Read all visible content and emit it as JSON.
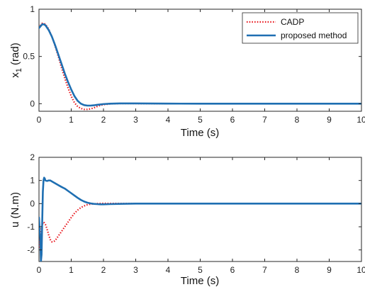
{
  "chart_data": [
    {
      "type": "line",
      "xlabel": "Time (s)",
      "ylabel_main": "x",
      "ylabel_sub": "1",
      "ylabel_unit": " (rad)",
      "xlim": [
        0,
        10
      ],
      "ylim": [
        -0.08,
        1
      ],
      "xticks": [
        "0",
        "1",
        "2",
        "3",
        "4",
        "5",
        "6",
        "7",
        "8",
        "9",
        "10"
      ],
      "yticks": [
        {
          "v": 0,
          "label": "0"
        },
        {
          "v": 0.5,
          "label": "0.5"
        },
        {
          "v": 1,
          "label": "1"
        }
      ],
      "legend": "top-right",
      "series": [
        {
          "name": "CADP",
          "color": "#e8141b",
          "dash": "dotted",
          "x": [
            0,
            0.05,
            0.1,
            0.15,
            0.2,
            0.3,
            0.4,
            0.5,
            0.6,
            0.7,
            0.8,
            0.9,
            1.0,
            1.1,
            1.2,
            1.3,
            1.4,
            1.5,
            1.6,
            1.7,
            1.8,
            1.9,
            2.0,
            2.2,
            2.5,
            3,
            4,
            5,
            10
          ],
          "y": [
            0.8,
            0.83,
            0.85,
            0.85,
            0.84,
            0.79,
            0.71,
            0.61,
            0.5,
            0.38,
            0.27,
            0.17,
            0.08,
            0.01,
            -0.03,
            -0.05,
            -0.06,
            -0.06,
            -0.055,
            -0.045,
            -0.03,
            -0.018,
            -0.01,
            -0.002,
            0.002,
            0.002,
            0,
            0,
            0
          ]
        },
        {
          "name": "proposed method",
          "color": "#1f6fb2",
          "dash": "solid",
          "x": [
            0,
            0.05,
            0.1,
            0.15,
            0.2,
            0.3,
            0.4,
            0.5,
            0.6,
            0.7,
            0.8,
            0.9,
            1.0,
            1.1,
            1.2,
            1.3,
            1.4,
            1.5,
            1.6,
            1.7,
            1.8,
            1.9,
            2.0,
            2.2,
            2.5,
            3,
            4,
            5,
            10
          ],
          "y": [
            0.8,
            0.82,
            0.84,
            0.84,
            0.83,
            0.78,
            0.71,
            0.62,
            0.52,
            0.42,
            0.32,
            0.23,
            0.15,
            0.08,
            0.03,
            0.0,
            -0.015,
            -0.02,
            -0.02,
            -0.017,
            -0.012,
            -0.008,
            -0.004,
            0.0,
            0.003,
            0.003,
            0.001,
            0,
            0
          ]
        }
      ]
    },
    {
      "type": "line",
      "xlabel": "Time (s)",
      "ylabel": "u (N.m)",
      "xlim": [
        0,
        10
      ],
      "ylim": [
        -2.5,
        2
      ],
      "xticks": [
        "0",
        "1",
        "2",
        "3",
        "4",
        "5",
        "6",
        "7",
        "8",
        "9",
        "10"
      ],
      "yticks": [
        {
          "v": -2,
          "label": "-2"
        },
        {
          "v": -1,
          "label": "-1"
        },
        {
          "v": 0,
          "label": "0"
        },
        {
          "v": 1,
          "label": "1"
        },
        {
          "v": 2,
          "label": "2"
        }
      ],
      "series": [
        {
          "name": "CADP",
          "color": "#e8141b",
          "dash": "dotted",
          "x": [
            0,
            0.05,
            0.1,
            0.15,
            0.2,
            0.25,
            0.3,
            0.35,
            0.4,
            0.45,
            0.5,
            0.55,
            0.6,
            0.7,
            0.8,
            0.9,
            1.0,
            1.1,
            1.2,
            1.3,
            1.4,
            1.5,
            1.6,
            1.8,
            2.0,
            3,
            10
          ],
          "y": [
            -1.9,
            -1.3,
            -0.9,
            -0.8,
            -0.9,
            -1.1,
            -1.35,
            -1.55,
            -1.65,
            -1.65,
            -1.6,
            -1.5,
            -1.4,
            -1.2,
            -1.0,
            -0.8,
            -0.6,
            -0.42,
            -0.28,
            -0.17,
            -0.1,
            -0.05,
            -0.02,
            0,
            0.01,
            0,
            0
          ]
        },
        {
          "name": "proposed method",
          "color": "#1f6fb2",
          "dash": "solid",
          "x": [
            0,
            0.04,
            0.06,
            0.08,
            0.1,
            0.12,
            0.14,
            0.16,
            0.18,
            0.2,
            0.25,
            0.3,
            0.35,
            0.4,
            0.5,
            0.6,
            0.7,
            0.8,
            0.9,
            1.0,
            1.1,
            1.2,
            1.3,
            1.4,
            1.5,
            1.6,
            1.7,
            1.8,
            1.9,
            2.0,
            2.2,
            2.5,
            3,
            10
          ],
          "y": [
            -0.6,
            -1.5,
            -2.5,
            -2.2,
            -0.8,
            0.5,
            1.0,
            1.12,
            1.08,
            1.0,
            0.98,
            1.0,
            1.0,
            0.96,
            0.88,
            0.8,
            0.72,
            0.65,
            0.55,
            0.45,
            0.35,
            0.25,
            0.16,
            0.09,
            0.04,
            0.01,
            -0.01,
            -0.02,
            -0.03,
            -0.03,
            -0.02,
            -0.01,
            0,
            0
          ]
        }
      ]
    }
  ]
}
